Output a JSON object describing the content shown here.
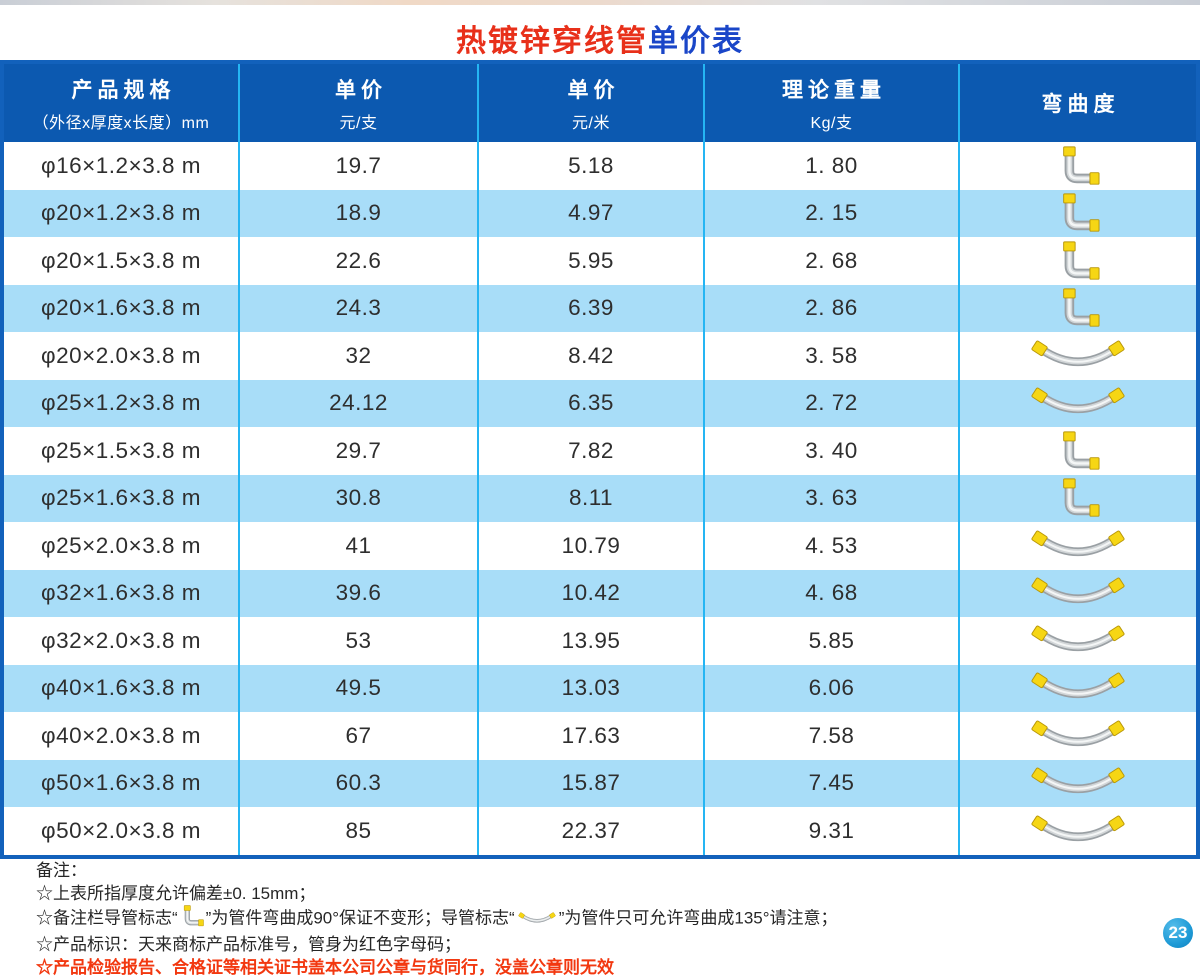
{
  "page": {
    "title": {
      "red_part": "热镀锌穿线管",
      "blue_part": "单价表"
    },
    "page_number": "23",
    "colors": {
      "title_red": "#e8301a",
      "title_blue": "#1a46c8",
      "note_red": "#f23810",
      "page_circle": "#1e9ad6"
    }
  },
  "table": {
    "colors": {
      "header_bg": "#0c59b0",
      "row_alt_bg": "#a8ddf8",
      "divider": "#25b5f3",
      "border": "#1261bb"
    },
    "columns": [
      {
        "title": "产品规格",
        "sub": "（外径x厚度x长度）mm"
      },
      {
        "title": "单价",
        "sub": "元/支"
      },
      {
        "title": "单价",
        "sub": "元/米"
      },
      {
        "title": "理论重量",
        "sub": "Kg/支"
      },
      {
        "title": "弯曲度",
        "sub": ""
      }
    ],
    "bend_icon_legend": {
      "elbow-90": "pipe bent to 90 degrees",
      "curve-135": "pipe bent to 135 degrees"
    },
    "rows": [
      {
        "spec": "φ16×1.2×3.8 m",
        "price_per_piece": "19.7",
        "price_per_meter": "5.18",
        "weight": "1. 80",
        "bend": "elbow-90"
      },
      {
        "spec": "φ20×1.2×3.8 m",
        "price_per_piece": "18.9",
        "price_per_meter": "4.97",
        "weight": "2. 15",
        "bend": "elbow-90"
      },
      {
        "spec": "φ20×1.5×3.8 m",
        "price_per_piece": "22.6",
        "price_per_meter": "5.95",
        "weight": "2. 68",
        "bend": "elbow-90"
      },
      {
        "spec": "φ20×1.6×3.8 m",
        "price_per_piece": "24.3",
        "price_per_meter": "6.39",
        "weight": "2. 86",
        "bend": "elbow-90"
      },
      {
        "spec": "φ20×2.0×3.8 m",
        "price_per_piece": "32",
        "price_per_meter": "8.42",
        "weight": "3. 58",
        "bend": "curve-135"
      },
      {
        "spec": "φ25×1.2×3.8 m",
        "price_per_piece": "24.12",
        "price_per_meter": "6.35",
        "weight": "2. 72",
        "bend": "curve-135"
      },
      {
        "spec": "φ25×1.5×3.8 m",
        "price_per_piece": "29.7",
        "price_per_meter": "7.82",
        "weight": "3. 40",
        "bend": "elbow-90"
      },
      {
        "spec": "φ25×1.6×3.8 m",
        "price_per_piece": "30.8",
        "price_per_meter": "8.11",
        "weight": "3. 63",
        "bend": "elbow-90"
      },
      {
        "spec": "φ25×2.0×3.8 m",
        "price_per_piece": "41",
        "price_per_meter": "10.79",
        "weight": "4. 53",
        "bend": "curve-135"
      },
      {
        "spec": "φ32×1.6×3.8 m",
        "price_per_piece": "39.6",
        "price_per_meter": "10.42",
        "weight": "4. 68",
        "bend": "curve-135"
      },
      {
        "spec": "φ32×2.0×3.8 m",
        "price_per_piece": "53",
        "price_per_meter": "13.95",
        "weight": "5.85",
        "bend": "curve-135"
      },
      {
        "spec": "φ40×1.6×3.8 m",
        "price_per_piece": "49.5",
        "price_per_meter": "13.03",
        "weight": "6.06",
        "bend": "curve-135"
      },
      {
        "spec": "φ40×2.0×3.8 m",
        "price_per_piece": "67",
        "price_per_meter": "17.63",
        "weight": "7.58",
        "bend": "curve-135"
      },
      {
        "spec": "φ50×1.6×3.8 m",
        "price_per_piece": "60.3",
        "price_per_meter": "15.87",
        "weight": "7.45",
        "bend": "curve-135"
      },
      {
        "spec": "φ50×2.0×3.8 m",
        "price_per_piece": "85",
        "price_per_meter": "22.37",
        "weight": "9.31",
        "bend": "curve-135"
      }
    ]
  },
  "notes": {
    "heading": "备注：",
    "line_tolerance": "☆上表所指厚度允许偏差±0. 15mm；",
    "line_bend_a": "☆备注栏导管标志“",
    "line_bend_b": "”为管件弯曲成90°保证不变形；导管标志“",
    "line_bend_c": "”为管件只可允许弯曲成135°请注意；",
    "line_marking": "☆产品标识：天来商标产品标准号，管身为红色字母码；",
    "line_warning": "☆产品检验报告、合格证等相关证书盖本公司公章与货同行，没盖公章则无效"
  }
}
